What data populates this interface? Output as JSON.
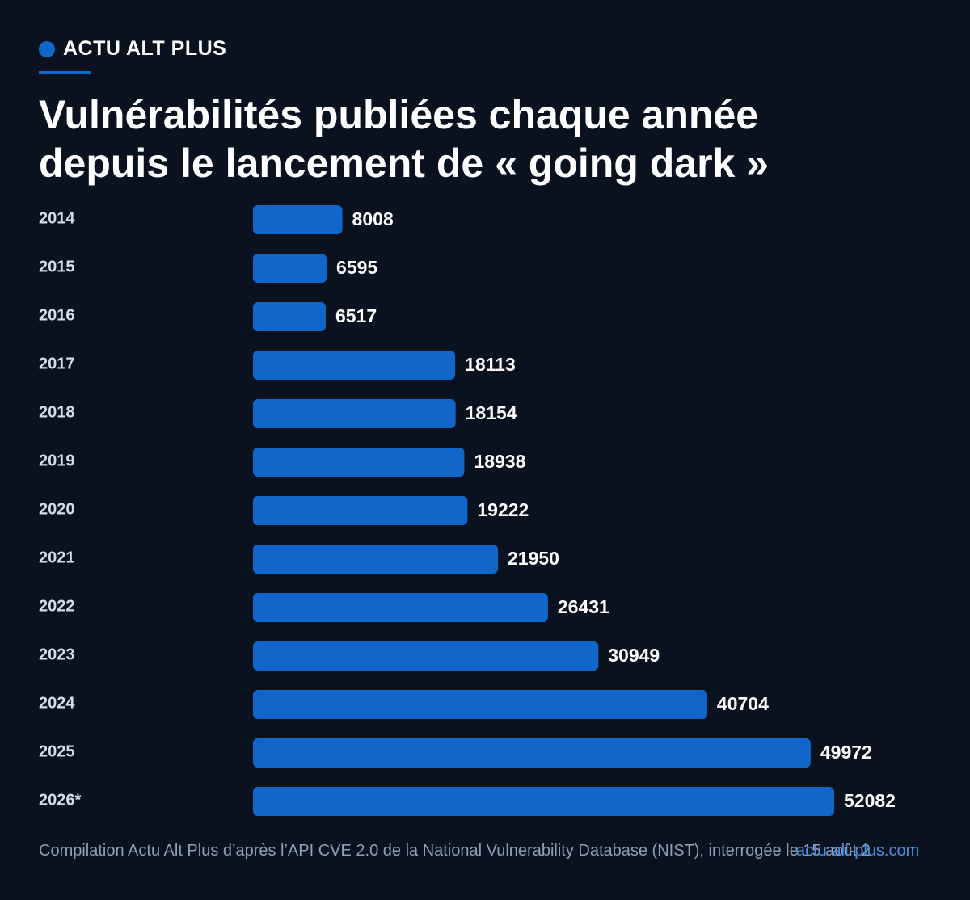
{
  "brand": {
    "name": "ACTU ALT PLUS",
    "accent_color": "#1166c9"
  },
  "header": {
    "title_line1": "Vulnérabilités publiées chaque année",
    "title_line2": "depuis le lancement de « going dark »"
  },
  "chart_data": {
    "type": "bar",
    "orientation": "horizontal",
    "title": "Vulnérabilités publiées chaque année depuis le lancement de « going dark »",
    "categories": [
      "2014",
      "2015",
      "2016",
      "2017",
      "2018",
      "2019",
      "2020",
      "2021",
      "2022",
      "2023",
      "2024",
      "2025",
      "2026*"
    ],
    "values": [
      8008,
      6595,
      6517,
      18113,
      18154,
      18938,
      19222,
      21950,
      26431,
      30949,
      40704,
      49972,
      52082
    ],
    "xlim": [
      0,
      52082
    ],
    "bar_color": "#1166c9",
    "grid": false,
    "legend": "none"
  },
  "footer": {
    "source": "Compilation Actu Alt Plus d’après l’API CVE 2.0 de la National Vulnerability Database (NIST), interrogée le 15 août 2",
    "site": "actu-alt-plus.com"
  }
}
